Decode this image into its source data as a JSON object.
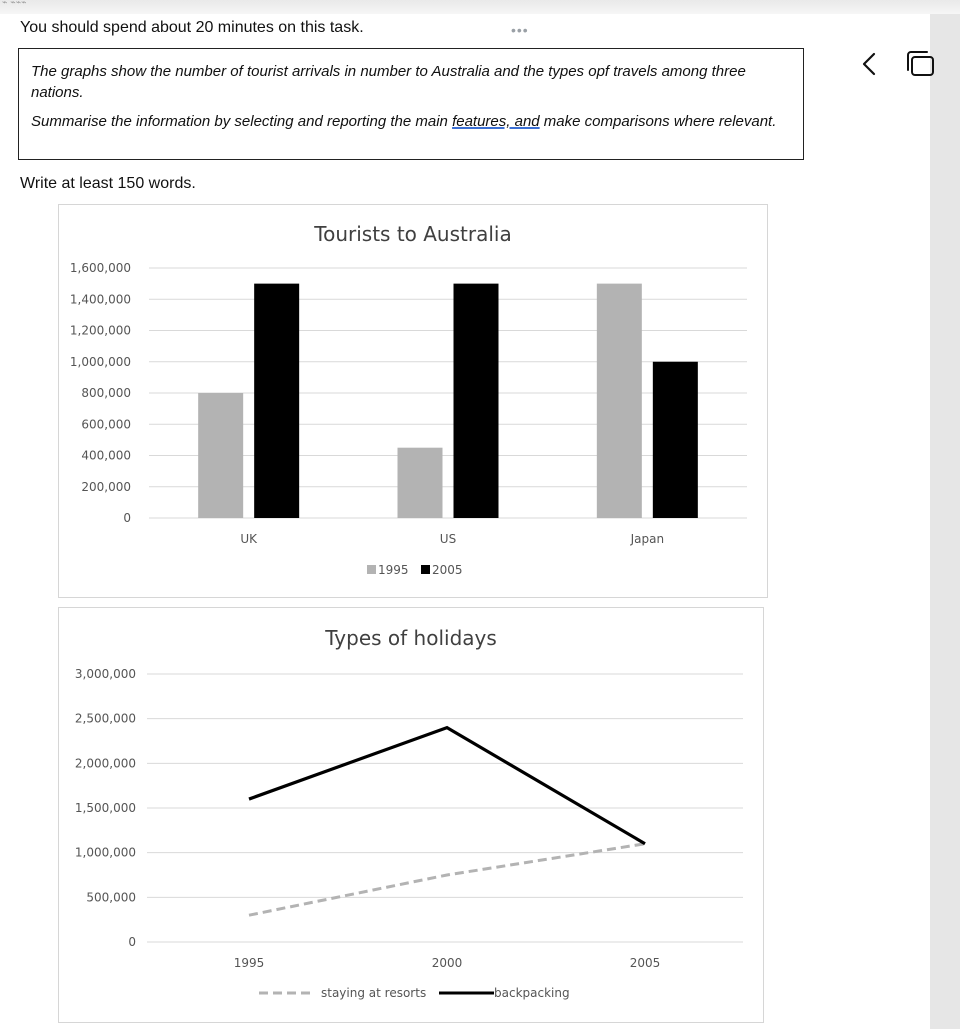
{
  "intro": "You should spend about 20 minutes on this task.",
  "task": {
    "line1": "The graphs show the number of tourist arrivals in number to Australia and the types opf travels among three nations.",
    "line2_pre": "Summarise the information by selecting and reporting the main ",
    "line2_link": "features, and",
    "line2_post": " make comparisons where relevant."
  },
  "write_instruction": "Write at least 150 words.",
  "icons": {
    "more": "more-dots-icon",
    "back": "chevron-left-icon",
    "window": "window-switch-icon"
  },
  "chart_data": [
    {
      "type": "bar",
      "title": "Tourists to Australia",
      "categories": [
        "UK",
        "US",
        "Japan"
      ],
      "series": [
        {
          "name": "1995",
          "values": [
            800000,
            450000,
            1500000
          ],
          "color": "#b3b3b3"
        },
        {
          "name": "2005",
          "values": [
            1500000,
            1500000,
            1000000
          ],
          "color": "#000000"
        }
      ],
      "ylim": [
        0,
        1600000
      ],
      "yticks": [
        "0",
        "200,000",
        "400,000",
        "600,000",
        "800,000",
        "1,000,000",
        "1,200,000",
        "1,400,000",
        "1,600,000"
      ],
      "grid": true,
      "legend": "bottom"
    },
    {
      "type": "line",
      "title": "Types of holidays",
      "x": [
        "1995",
        "2000",
        "2005"
      ],
      "series": [
        {
          "name": "staying at resorts",
          "values": [
            300000,
            750000,
            1100000
          ],
          "color": "#b3b3b3",
          "style": "dashed"
        },
        {
          "name": "backpacking",
          "values": [
            1600000,
            2400000,
            1100000
          ],
          "color": "#000000",
          "style": "solid"
        }
      ],
      "ylim": [
        0,
        3000000
      ],
      "yticks": [
        "0",
        "500,000",
        "1,000,000",
        "1,500,000",
        "2,000,000",
        "2,500,000",
        "3,000,000"
      ],
      "grid": true,
      "legend": "bottom"
    }
  ]
}
